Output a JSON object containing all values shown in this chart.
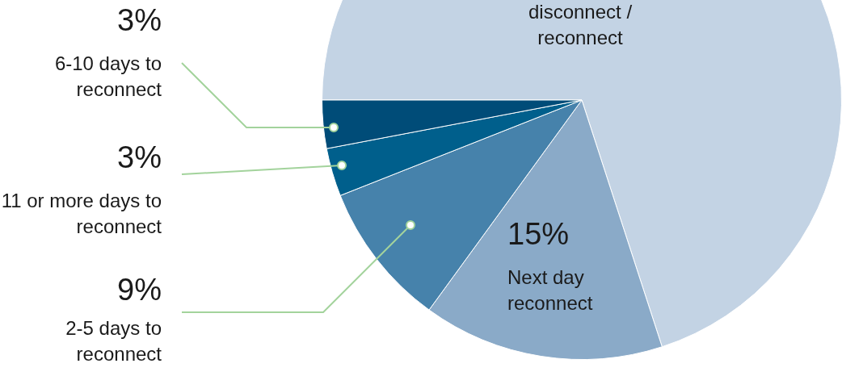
{
  "chart_data": {
    "type": "pie",
    "categories": [
      "disconnect / reconnect",
      "Next day reconnect",
      "2-5 days to reconnect",
      "11 or more days to reconnect",
      "6-10 days to reconnect"
    ],
    "values": [
      70,
      15,
      9,
      3,
      3
    ],
    "colors": [
      "#c3d3e4",
      "#8aaac8",
      "#4682ab",
      "#005f8c",
      "#004c78"
    ],
    "value_labels": [
      null,
      "15%",
      "9%",
      "3%",
      "3%"
    ],
    "legend": false
  }
}
